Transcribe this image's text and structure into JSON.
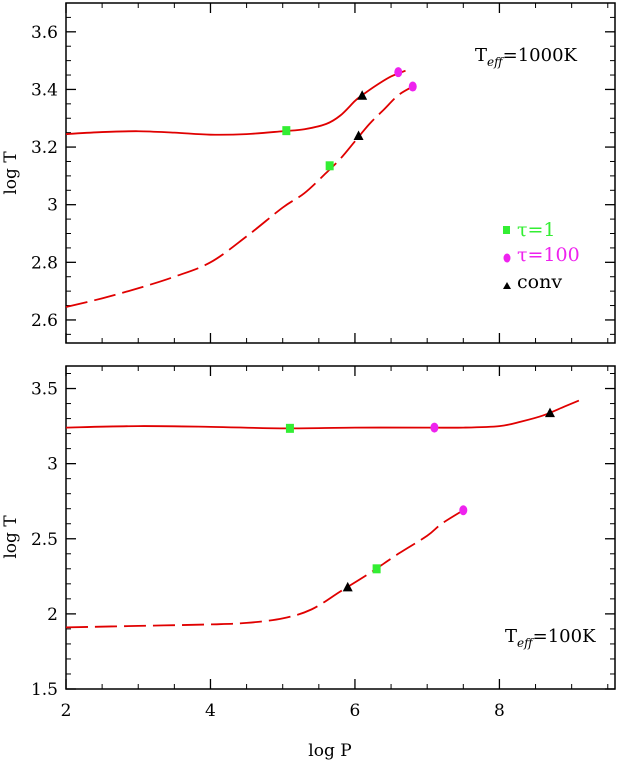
{
  "chart_data": [
    {
      "type": "line",
      "annotation": {
        "main": "T",
        "sub": "eff",
        "rest": "=1000K"
      },
      "xlabel": "",
      "ylabel": "log T",
      "xlim": [
        2,
        9.6
      ],
      "ylim": [
        2.52,
        3.7
      ],
      "x_ticks": [
        2,
        4,
        6,
        8
      ],
      "x_tick_labels": [],
      "y_ticks": [
        2.6,
        2.8,
        3,
        3.2,
        3.4,
        3.6
      ],
      "y_tick_labels": [
        "2.6",
        "2.8",
        "3",
        "3.2",
        "3.4",
        "3.6"
      ],
      "series": [
        {
          "style": "solid",
          "color": "#e00000",
          "x": [
            2.0,
            2.5,
            3.0,
            3.5,
            4.0,
            4.5,
            5.0,
            5.3,
            5.6,
            5.8,
            6.0,
            6.1,
            6.3,
            6.5,
            6.7
          ],
          "y": [
            3.245,
            3.252,
            3.255,
            3.25,
            3.243,
            3.245,
            3.255,
            3.262,
            3.28,
            3.31,
            3.36,
            3.38,
            3.415,
            3.445,
            3.465
          ]
        },
        {
          "style": "dashed",
          "color": "#e00000",
          "x": [
            2.0,
            2.5,
            3.0,
            3.5,
            4.0,
            4.5,
            5.0,
            5.3,
            5.6,
            5.8,
            6.0,
            6.2,
            6.4,
            6.6,
            6.8
          ],
          "y": [
            2.645,
            2.675,
            2.71,
            2.75,
            2.8,
            2.89,
            2.99,
            3.04,
            3.11,
            3.16,
            3.22,
            3.28,
            3.33,
            3.38,
            3.41
          ]
        }
      ],
      "markers": [
        {
          "kind": "tau1",
          "x": 5.05,
          "y": 3.257
        },
        {
          "kind": "tau1",
          "x": 5.65,
          "y": 3.135
        },
        {
          "kind": "tau100",
          "x": 6.6,
          "y": 3.46
        },
        {
          "kind": "tau100",
          "x": 6.8,
          "y": 3.41
        },
        {
          "kind": "conv",
          "x": 6.1,
          "y": 3.38
        },
        {
          "kind": "conv",
          "x": 6.05,
          "y": 3.24
        }
      ],
      "legend": {
        "placement": "right",
        "entries": [
          {
            "kind": "tau1",
            "label": "τ=1",
            "color": "#33ee33"
          },
          {
            "kind": "tau100",
            "label": "τ=100",
            "color": "#ee22ee"
          },
          {
            "kind": "conv",
            "label": "conv",
            "color": "#000000"
          }
        ]
      }
    },
    {
      "type": "line",
      "annotation": {
        "main": "T",
        "sub": "eff",
        "rest": "=100K"
      },
      "xlabel": "log P",
      "ylabel": "log T",
      "xlim": [
        2,
        9.6
      ],
      "ylim": [
        1.5,
        3.65
      ],
      "x_ticks": [
        2,
        4,
        6,
        8
      ],
      "x_tick_labels": [
        "2",
        "4",
        "6",
        "8"
      ],
      "y_ticks": [
        1.5,
        2,
        2.5,
        3,
        3.5
      ],
      "y_tick_labels": [
        "1.5",
        "2",
        "2.5",
        "3",
        "3.5"
      ],
      "series": [
        {
          "style": "solid",
          "color": "#e00000",
          "x": [
            2.0,
            3.0,
            4.0,
            5.0,
            6.0,
            7.0,
            7.5,
            8.0,
            8.3,
            8.6,
            8.9,
            9.1
          ],
          "y": [
            3.24,
            3.25,
            3.245,
            3.235,
            3.24,
            3.24,
            3.24,
            3.25,
            3.28,
            3.32,
            3.38,
            3.42
          ]
        },
        {
          "style": "dashed",
          "color": "#e00000",
          "x": [
            2.0,
            3.0,
            4.0,
            4.5,
            5.0,
            5.4,
            5.8,
            6.2,
            6.6,
            7.0,
            7.2,
            7.5
          ],
          "y": [
            1.91,
            1.92,
            1.93,
            1.94,
            1.97,
            2.03,
            2.15,
            2.27,
            2.4,
            2.52,
            2.6,
            2.69
          ]
        }
      ],
      "markers": [
        {
          "kind": "tau1",
          "x": 5.1,
          "y": 3.235
        },
        {
          "kind": "tau1",
          "x": 6.3,
          "y": 2.3
        },
        {
          "kind": "tau100",
          "x": 7.1,
          "y": 3.24
        },
        {
          "kind": "tau100",
          "x": 7.5,
          "y": 2.69
        },
        {
          "kind": "conv",
          "x": 8.7,
          "y": 3.34
        },
        {
          "kind": "conv",
          "x": 5.9,
          "y": 2.18
        }
      ]
    }
  ]
}
